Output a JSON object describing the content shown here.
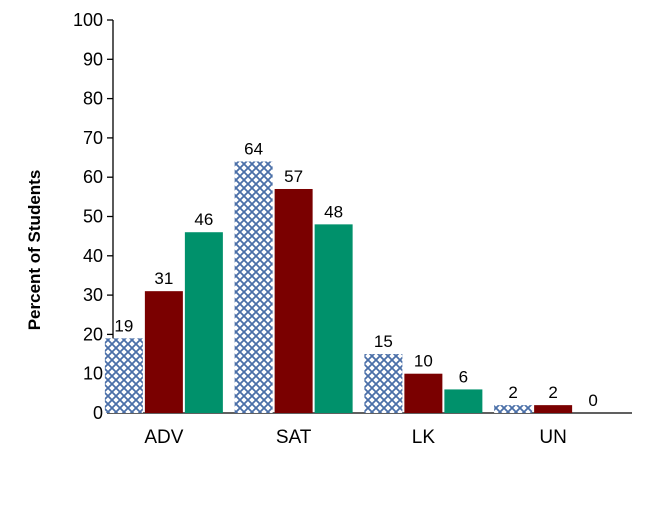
{
  "chart_data": {
    "type": "bar",
    "title": "",
    "xlabel": "",
    "ylabel": "Percent of Students",
    "ylim": [
      0,
      100
    ],
    "yticks": [
      0,
      10,
      20,
      30,
      40,
      50,
      60,
      70,
      80,
      90,
      100
    ],
    "categories": [
      "ADV",
      "SAT",
      "LK",
      "UN"
    ],
    "grid": false,
    "legend": "none",
    "series": [
      {
        "values": [
          19,
          64,
          15,
          2
        ],
        "color": "#4a6fa8",
        "fill": "crosshatch-pattern"
      },
      {
        "values": [
          31,
          57,
          10,
          2
        ],
        "color": "#7a0000",
        "fill": "solid"
      },
      {
        "values": [
          46,
          48,
          6,
          0
        ],
        "color": "#00916b",
        "fill": "solid"
      }
    ],
    "data_labels": [
      [
        "19",
        "64",
        "15",
        "2"
      ],
      [
        "31",
        "57",
        "10",
        "2"
      ],
      [
        "46",
        "48",
        "6",
        "0"
      ]
    ]
  }
}
